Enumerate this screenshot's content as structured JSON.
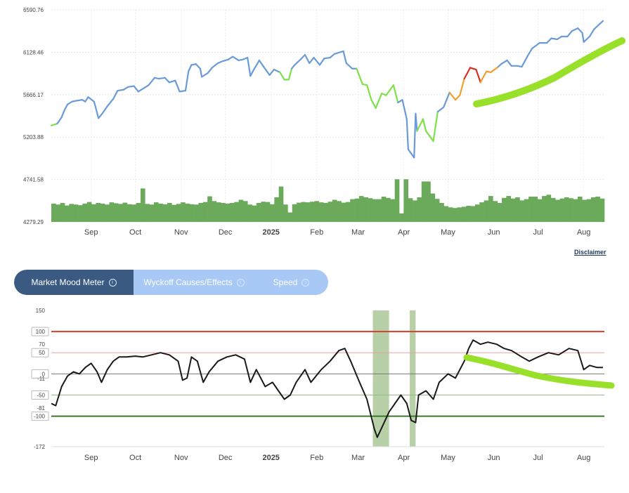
{
  "disclaimer": "Disclaimer",
  "tabs": [
    {
      "label": "Market Mood Meter",
      "active": true,
      "icon": "info-icon"
    },
    {
      "label": "Wyckoff Causes/Effects",
      "active": false,
      "icon": "info-icon"
    },
    {
      "label": "Speed",
      "active": false,
      "icon": "info-icon"
    }
  ],
  "colors": {
    "price_line": "#6a9bd8",
    "price_bullish": "#7ee04a",
    "price_warm": "#f0a030",
    "price_hot": "#d83020",
    "volume": "#6aaa5a",
    "annotation": "#99e02a",
    "mood_line": "#1a1a1a",
    "level_100": "#d04030",
    "level_minus100": "#3a7a2a",
    "shade": "#b7d0a8"
  },
  "chart_data": [
    {
      "type": "line",
      "y_ticks": [
        "6590.76",
        "6128.46",
        "5666.17",
        "5203.88",
        "4741.58",
        "4279.29"
      ],
      "ylim": [
        4279.29,
        6590.76
      ],
      "x_ticks": [
        "Sep",
        "Oct",
        "Nov",
        "Dec",
        "2025",
        "Feb",
        "Mar",
        "Apr",
        "May",
        "Jun",
        "Jul",
        "Aug"
      ],
      "x_range": [
        "2024-08-05",
        "2025-08-15"
      ],
      "series": [
        {
          "values": [
            [
              "2024-08-05",
              5330
            ],
            [
              "2024-08-07",
              5340
            ],
            [
              "2024-08-09",
              5350
            ],
            [
              "2024-08-12",
              5420
            ],
            [
              "2024-08-14",
              5500
            ],
            [
              "2024-08-16",
              5560
            ],
            [
              "2024-08-19",
              5590
            ],
            [
              "2024-08-22",
              5600
            ],
            [
              "2024-08-26",
              5610
            ],
            [
              "2024-08-28",
              5590
            ],
            [
              "2024-08-30",
              5640
            ],
            [
              "2024-09-03",
              5590
            ],
            [
              "2024-09-06",
              5410
            ],
            [
              "2024-09-09",
              5470
            ],
            [
              "2024-09-12",
              5540
            ],
            [
              "2024-09-16",
              5620
            ],
            [
              "2024-09-19",
              5710
            ],
            [
              "2024-09-23",
              5720
            ],
            [
              "2024-09-26",
              5750
            ],
            [
              "2024-09-30",
              5760
            ],
            [
              "2024-10-03",
              5700
            ],
            [
              "2024-10-07",
              5740
            ],
            [
              "2024-10-10",
              5770
            ],
            [
              "2024-10-14",
              5850
            ],
            [
              "2024-10-17",
              5840
            ],
            [
              "2024-10-21",
              5850
            ],
            [
              "2024-10-24",
              5800
            ],
            [
              "2024-10-28",
              5820
            ],
            [
              "2024-10-31",
              5700
            ],
            [
              "2024-11-04",
              5710
            ],
            [
              "2024-11-06",
              5920
            ],
            [
              "2024-11-08",
              5990
            ],
            [
              "2024-11-11",
              6000
            ],
            [
              "2024-11-14",
              5950
            ],
            [
              "2024-11-15",
              5860
            ],
            [
              "2024-11-19",
              5900
            ],
            [
              "2024-11-22",
              5960
            ],
            [
              "2024-11-26",
              6010
            ],
            [
              "2024-11-29",
              6030
            ],
            [
              "2024-12-03",
              6050
            ],
            [
              "2024-12-06",
              6080
            ],
            [
              "2024-12-10",
              6040
            ],
            [
              "2024-12-13",
              6050
            ],
            [
              "2024-12-16",
              6070
            ],
            [
              "2024-12-18",
              5870
            ],
            [
              "2024-12-20",
              5930
            ],
            [
              "2024-12-24",
              6040
            ],
            [
              "2024-12-27",
              5970
            ],
            [
              "2024-12-31",
              5880
            ],
            [
              "2025-01-03",
              5940
            ],
            [
              "2025-01-07",
              5910
            ],
            [
              "2025-01-10",
              5830
            ],
            [
              "2025-01-13",
              5830
            ],
            [
              "2025-01-15",
              5950
            ],
            [
              "2025-01-17",
              5990
            ],
            [
              "2025-01-21",
              6050
            ],
            [
              "2025-01-24",
              6100
            ],
            [
              "2025-01-27",
              6010
            ],
            [
              "2025-01-30",
              6070
            ],
            [
              "2025-02-03",
              5990
            ],
            [
              "2025-02-06",
              6060
            ],
            [
              "2025-02-10",
              6070
            ],
            [
              "2025-02-13",
              6110
            ],
            [
              "2025-02-19",
              6140
            ],
            [
              "2025-02-21",
              6010
            ],
            [
              "2025-02-25",
              5950
            ],
            [
              "2025-02-28",
              5950
            ],
            [
              "2025-03-04",
              5780
            ],
            [
              "2025-03-07",
              5770
            ],
            [
              "2025-03-10",
              5610
            ],
            [
              "2025-03-13",
              5520
            ],
            [
              "2025-03-17",
              5680
            ],
            [
              "2025-03-20",
              5660
            ],
            [
              "2025-03-25",
              5770
            ],
            [
              "2025-03-28",
              5580
            ],
            [
              "2025-03-31",
              5610
            ],
            [
              "2025-04-03",
              5400
            ],
            [
              "2025-04-04",
              5070
            ],
            [
              "2025-04-08",
              4980
            ],
            [
              "2025-04-09",
              5460
            ],
            [
              "2025-04-10",
              5270
            ],
            [
              "2025-04-14",
              5400
            ],
            [
              "2025-04-16",
              5270
            ],
            [
              "2025-04-21",
              5160
            ],
            [
              "2025-04-24",
              5480
            ],
            [
              "2025-04-28",
              5530
            ],
            [
              "2025-05-02",
              5690
            ],
            [
              "2025-05-06",
              5610
            ],
            [
              "2025-05-09",
              5660
            ],
            [
              "2025-05-12",
              5840
            ],
            [
              "2025-05-16",
              5960
            ],
            [
              "2025-05-20",
              5940
            ],
            [
              "2025-05-23",
              5800
            ],
            [
              "2025-05-27",
              5920
            ],
            [
              "2025-05-30",
              5910
            ],
            [
              "2025-06-04",
              5970
            ],
            [
              "2025-06-06",
              6000
            ],
            [
              "2025-06-10",
              6040
            ],
            [
              "2025-06-13",
              5980
            ],
            [
              "2025-06-17",
              5980
            ],
            [
              "2025-06-20",
              5970
            ],
            [
              "2025-06-24",
              6090
            ],
            [
              "2025-06-27",
              6170
            ],
            [
              "2025-07-02",
              6230
            ],
            [
              "2025-07-07",
              6230
            ],
            [
              "2025-07-10",
              6280
            ],
            [
              "2025-07-14",
              6270
            ],
            [
              "2025-07-17",
              6300
            ],
            [
              "2025-07-21",
              6300
            ],
            [
              "2025-07-24",
              6360
            ],
            [
              "2025-07-28",
              6390
            ],
            [
              "2025-07-31",
              6340
            ],
            [
              "2025-08-01",
              6240
            ],
            [
              "2025-08-05",
              6300
            ],
            [
              "2025-08-08",
              6380
            ],
            [
              "2025-08-12",
              6440
            ],
            [
              "2025-08-14",
              6470
            ]
          ]
        }
      ]
    },
    {
      "type": "bar",
      "series": [
        {
          "values_relative_to_ylim_start": [
            0.58,
            0.55,
            0.6,
            0.52,
            0.57,
            0.55,
            0.53,
            0.58,
            0.63,
            0.56,
            0.6,
            0.58,
            0.55,
            0.62,
            0.59,
            0.57,
            0.61,
            0.56,
            0.55,
            0.6,
            1.06,
            0.57,
            0.55,
            0.62,
            0.58,
            0.56,
            0.6,
            0.54,
            0.57,
            0.62,
            0.58,
            0.56,
            0.55,
            0.6,
            0.63,
            0.81,
            0.66,
            0.62,
            0.6,
            0.58,
            0.6,
            0.63,
            0.7,
            0.66,
            0.55,
            0.52,
            0.6,
            0.64,
            0.63,
            0.56,
            0.78,
            1.12,
            0.55,
            0.3,
            0.56,
            0.61,
            0.63,
            0.62,
            0.64,
            0.66,
            0.62,
            0.6,
            0.64,
            0.7,
            0.66,
            0.61,
            0.63,
            0.72,
            0.74,
            0.82,
            0.78,
            0.75,
            0.72,
            0.72,
            0.8,
            0.76,
            0.72,
            1.35,
            0.27,
            1.35,
            0.75,
            0.68,
            0.78,
            1.28,
            1.28,
            0.9,
            0.73,
            0.6,
            0.5,
            0.46,
            0.44,
            0.46,
            0.48,
            0.51,
            0.5,
            0.55,
            0.62,
            0.68,
            0.82,
            0.66,
            0.6,
            0.76,
            0.82,
            0.74,
            0.78,
            0.68,
            0.72,
            0.8,
            0.8,
            0.72,
            0.82,
            0.86,
            0.76,
            0.7,
            0.74,
            0.78,
            0.75,
            0.72,
            0.8,
            0.7,
            0.72,
            0.78,
            0.8,
            0.74
          ]
        }
      ]
    },
    {
      "type": "line",
      "y_ticks": [
        "150",
        "100",
        "70",
        "50",
        "0",
        "-11",
        "-50",
        "-81",
        "-100",
        "-172"
      ],
      "ylim": [
        -172,
        150
      ],
      "levels": [
        100,
        50,
        0,
        -50,
        -100
      ],
      "x_ticks": [
        "Sep",
        "Oct",
        "Nov",
        "Dec",
        "2025",
        "Feb",
        "Mar",
        "Apr",
        "May",
        "Jun",
        "Jul",
        "Aug"
      ],
      "x_range": [
        "2024-08-05",
        "2025-08-15"
      ],
      "shaded_ranges": [
        [
          "2025-03-11",
          "2025-03-22"
        ],
        [
          "2025-04-05",
          "2025-04-09"
        ]
      ],
      "series": [
        {
          "values": [
            [
              "2024-08-05",
              -70
            ],
            [
              "2024-08-08",
              -75
            ],
            [
              "2024-08-12",
              -30
            ],
            [
              "2024-08-16",
              -5
            ],
            [
              "2024-08-20",
              5
            ],
            [
              "2024-08-24",
              0
            ],
            [
              "2024-08-28",
              15
            ],
            [
              "2024-09-01",
              25
            ],
            [
              "2024-09-05",
              5
            ],
            [
              "2024-09-08",
              -20
            ],
            [
              "2024-09-12",
              10
            ],
            [
              "2024-09-16",
              30
            ],
            [
              "2024-09-20",
              40
            ],
            [
              "2024-09-25",
              40
            ],
            [
              "2024-10-01",
              42
            ],
            [
              "2024-10-06",
              40
            ],
            [
              "2024-10-12",
              45
            ],
            [
              "2024-10-18",
              50
            ],
            [
              "2024-10-24",
              45
            ],
            [
              "2024-10-30",
              30
            ],
            [
              "2024-11-02",
              -15
            ],
            [
              "2024-11-05",
              -10
            ],
            [
              "2024-11-08",
              40
            ],
            [
              "2024-11-12",
              30
            ],
            [
              "2024-11-16",
              -20
            ],
            [
              "2024-11-20",
              5
            ],
            [
              "2024-11-26",
              30
            ],
            [
              "2024-12-02",
              40
            ],
            [
              "2024-12-08",
              45
            ],
            [
              "2024-12-14",
              35
            ],
            [
              "2024-12-18",
              -20
            ],
            [
              "2024-12-22",
              10
            ],
            [
              "2024-12-28",
              -30
            ],
            [
              "2025-01-02",
              -20
            ],
            [
              "2025-01-06",
              -40
            ],
            [
              "2025-01-10",
              -60
            ],
            [
              "2025-01-14",
              -50
            ],
            [
              "2025-01-18",
              -20
            ],
            [
              "2025-01-24",
              10
            ],
            [
              "2025-01-28",
              -20
            ],
            [
              "2025-02-04",
              10
            ],
            [
              "2025-02-10",
              30
            ],
            [
              "2025-02-16",
              55
            ],
            [
              "2025-02-20",
              60
            ],
            [
              "2025-02-24",
              30
            ],
            [
              "2025-03-02",
              -20
            ],
            [
              "2025-03-07",
              -60
            ],
            [
              "2025-03-12",
              -130
            ],
            [
              "2025-03-14",
              -150
            ],
            [
              "2025-03-18",
              -120
            ],
            [
              "2025-03-22",
              -90
            ],
            [
              "2025-03-26",
              -70
            ],
            [
              "2025-03-30",
              -50
            ],
            [
              "2025-04-03",
              -70
            ],
            [
              "2025-04-06",
              -110
            ],
            [
              "2025-04-09",
              -115
            ],
            [
              "2025-04-11",
              -50
            ],
            [
              "2025-04-16",
              -40
            ],
            [
              "2025-04-21",
              -60
            ],
            [
              "2025-04-25",
              -20
            ],
            [
              "2025-05-01",
              0
            ],
            [
              "2025-05-06",
              -10
            ],
            [
              "2025-05-12",
              30
            ],
            [
              "2025-05-15",
              60
            ],
            [
              "2025-05-18",
              80
            ],
            [
              "2025-05-23",
              70
            ],
            [
              "2025-05-28",
              75
            ],
            [
              "2025-06-03",
              70
            ],
            [
              "2025-06-08",
              60
            ],
            [
              "2025-06-13",
              55
            ],
            [
              "2025-06-20",
              40
            ],
            [
              "2025-06-25",
              30
            ],
            [
              "2025-07-01",
              40
            ],
            [
              "2025-07-08",
              50
            ],
            [
              "2025-07-15",
              45
            ],
            [
              "2025-07-22",
              60
            ],
            [
              "2025-07-28",
              55
            ],
            [
              "2025-08-01",
              10
            ],
            [
              "2025-08-05",
              20
            ],
            [
              "2025-08-10",
              15
            ],
            [
              "2025-08-14",
              15
            ]
          ]
        }
      ]
    }
  ]
}
